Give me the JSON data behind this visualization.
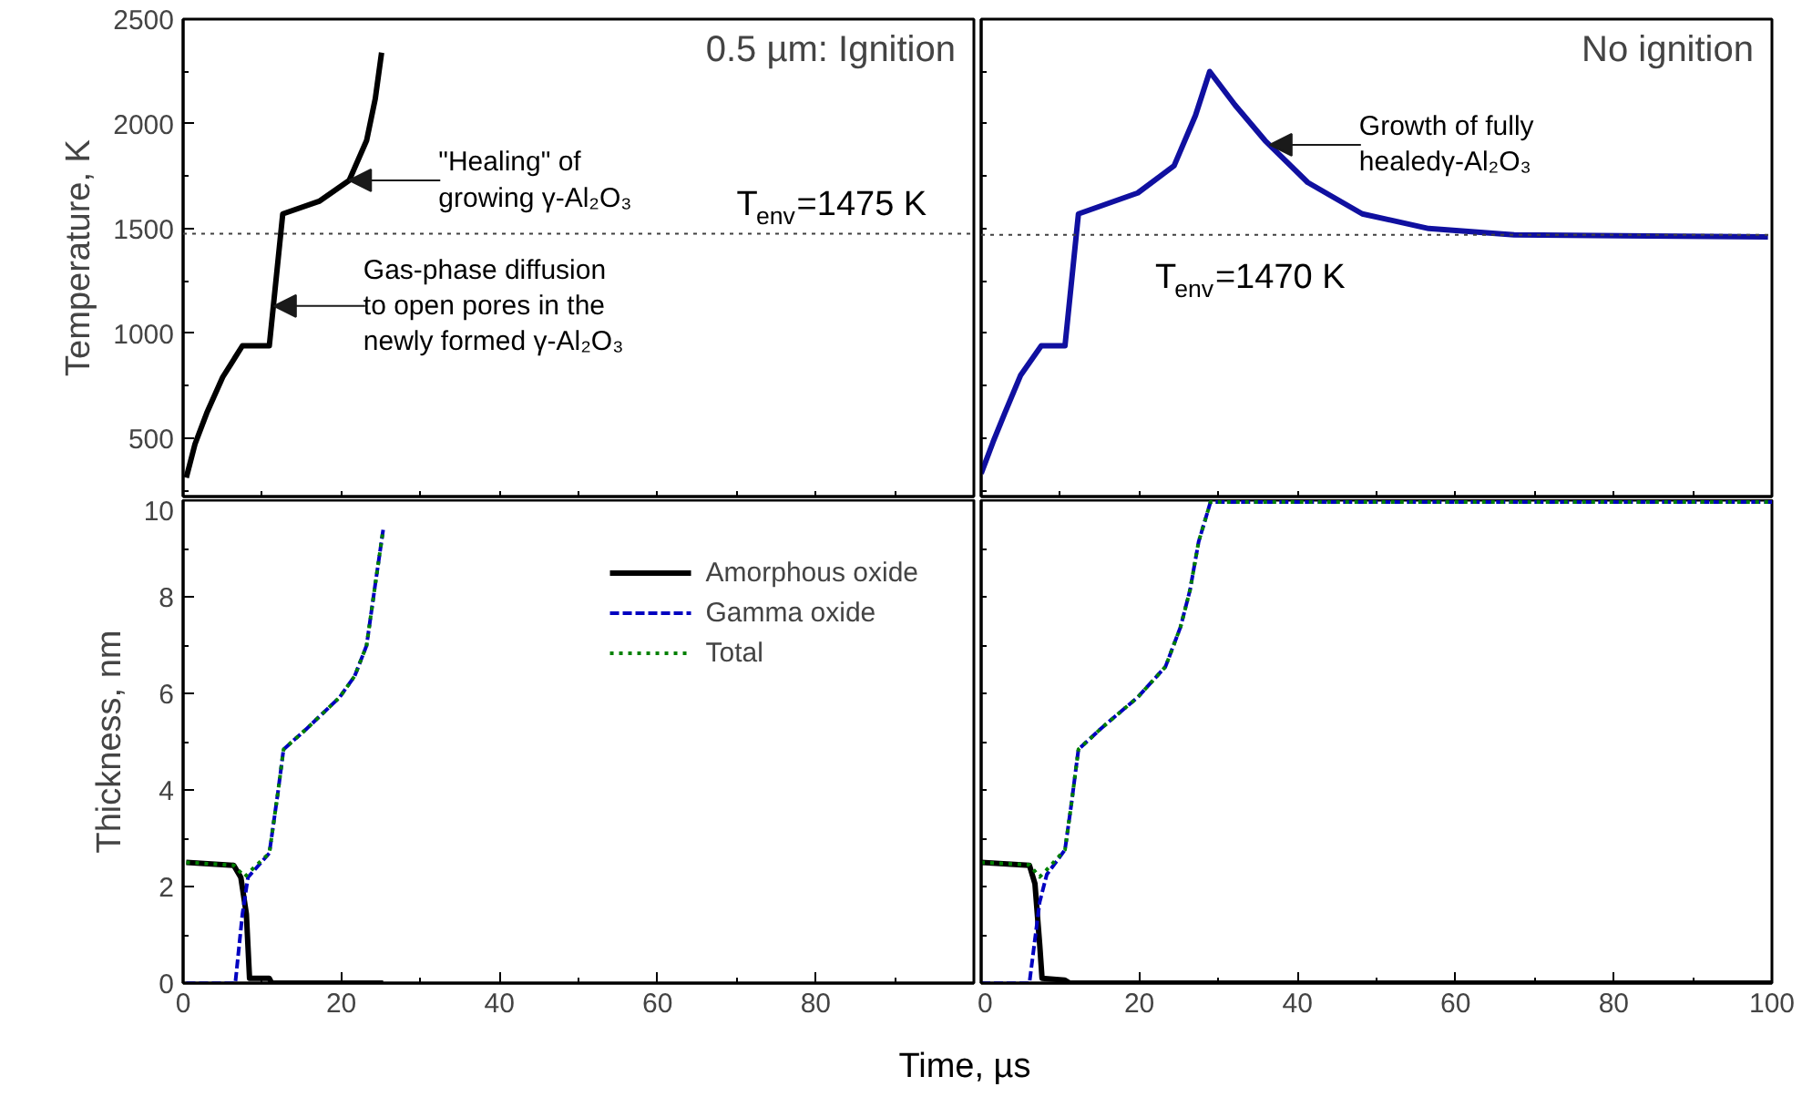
{
  "chart_data": [
    {
      "type": "line",
      "title": "0.5 µm: Ignition",
      "ylabel": "Temperature, K",
      "tick_labels": "y",
      "legend": false,
      "xlim": [
        0,
        100
      ],
      "xticks": [
        {
          "value": 0,
          "label": null
        },
        {
          "value": 10,
          "label": null
        },
        {
          "value": 20,
          "label": null
        },
        {
          "value": 30,
          "label": null
        },
        {
          "value": 40,
          "label": null
        },
        {
          "value": 50,
          "label": null
        },
        {
          "value": 60,
          "label": null
        },
        {
          "value": 70,
          "label": null
        },
        {
          "value": 80,
          "label": null
        },
        {
          "value": 90,
          "label": null
        },
        {
          "value": 100,
          "label": null
        }
      ],
      "ylim": [
        220,
        2500
      ],
      "yticks": [
        {
          "value": 250,
          "label": null
        },
        500,
        {
          "value": 750,
          "label": null
        },
        1000,
        {
          "value": 1250,
          "label": null
        },
        1500,
        {
          "value": 1750,
          "label": null
        },
        2000,
        {
          "value": 2250,
          "label": null
        },
        2500
      ],
      "series": [
        {
          "color": "#000000",
          "line_style": "solid",
          "x": [
            0.4,
            1.5,
            3,
            5,
            7.5,
            10.9,
            12.6,
            17.2,
            21,
            23.2,
            24.3,
            25.1
          ],
          "values": [
            310,
            470,
            620,
            790,
            940,
            940,
            1570,
            1630,
            1730,
            1920,
            2120,
            2340
          ]
        }
      ],
      "ref_lines": [
        {
          "axis": "y",
          "value": 1475,
          "label": "T$_{env}$=1475 K",
          "color": "#404040",
          "line_style": "dotted"
        }
      ],
      "annotations": [
        {
          "text": "\"Healing\" of\ngrowing γ-Al₂O₃",
          "x": 21,
          "y": 1730
        },
        {
          "text": "Gas-phase diffusion\nto open pores in the\nnewly formed γ-Al₂O₃",
          "x": 11.5,
          "y": 1130
        }
      ]
    },
    {
      "type": "line",
      "title": "No ignition",
      "tick_labels": false,
      "legend": false,
      "xlim": [
        0,
        100
      ],
      "xticks": [
        {
          "value": 0,
          "label": null
        },
        {
          "value": 10,
          "label": null
        },
        {
          "value": 20,
          "label": null
        },
        {
          "value": 30,
          "label": null
        },
        {
          "value": 40,
          "label": null
        },
        {
          "value": 50,
          "label": null
        },
        {
          "value": 60,
          "label": null
        },
        {
          "value": 70,
          "label": null
        },
        {
          "value": 80,
          "label": null
        },
        {
          "value": 90,
          "label": null
        },
        {
          "value": 100,
          "label": null
        }
      ],
      "ylim": [
        220,
        2500
      ],
      "yticks": [
        {
          "value": 250,
          "label": null
        },
        {
          "value": 500,
          "label": null
        },
        {
          "value": 750,
          "label": null
        },
        {
          "value": 1000,
          "label": null
        },
        {
          "value": 1250,
          "label": null
        },
        {
          "value": 1500,
          "label": null
        },
        {
          "value": 1750,
          "label": null
        },
        {
          "value": 2000,
          "label": null
        },
        {
          "value": 2250,
          "label": null
        },
        {
          "value": 2500,
          "label": null
        }
      ],
      "series": [
        {
          "color": "#1010a0",
          "line_style": "solid",
          "x": [
            0,
            1.5,
            3,
            5,
            7.6,
            10.6,
            12.3,
            19.8,
            24.4,
            27.1,
            28.9,
            32.1,
            35.9,
            41.3,
            48.2,
            56.6,
            67.4,
            99.5
          ],
          "values": [
            330,
            480,
            620,
            800,
            940,
            940,
            1570,
            1670,
            1800,
            2040,
            2250,
            2090,
            1920,
            1720,
            1570,
            1500,
            1470,
            1460
          ]
        }
      ],
      "ref_lines": [
        {
          "axis": "y",
          "value": 1470,
          "label": "T$_{env}$=1470 K",
          "color": "#404040",
          "line_style": "dotted"
        }
      ],
      "annotations": [
        {
          "text": "Growth of fully\nhealedγ-Al₂O₃",
          "x": 36.5,
          "y": 1900
        }
      ]
    },
    {
      "type": "line",
      "ylabel": "Thickness, nm",
      "xlabel": "Time, µs",
      "legend": "top right",
      "xlim": [
        0,
        100
      ],
      "xticks": [
        0,
        {
          "value": 10,
          "label": null
        },
        20,
        {
          "value": 30,
          "label": null
        },
        40,
        {
          "value": 50,
          "label": null
        },
        60,
        {
          "value": 70,
          "label": null
        },
        80,
        {
          "value": 90,
          "label": null
        },
        {
          "value": 100,
          "label": null
        }
      ],
      "ylim": [
        0,
        10
      ],
      "yticks": [
        0,
        {
          "value": 1,
          "label": null
        },
        2,
        {
          "value": 3,
          "label": null
        },
        4,
        {
          "value": 5,
          "label": null
        },
        6,
        {
          "value": 7,
          "label": null
        },
        8,
        {
          "value": 9,
          "label": null
        },
        10
      ],
      "series": [
        {
          "name": "Amorphous oxide",
          "color": "#000000",
          "line_style": "solid",
          "x": [
            0.4,
            6.4,
            7.3,
            8.0,
            8.4,
            10.9,
            11.2,
            25.3
          ],
          "values": [
            2.5,
            2.44,
            2.19,
            1.43,
            0.1,
            0.1,
            0,
            0
          ]
        },
        {
          "name": "Gamma oxide",
          "color": "#0000c0",
          "line_style": "dashed",
          "x": [
            0.4,
            6.6,
            7.5,
            8.2,
            10.9,
            12,
            12.7,
            15.7,
            19.8,
            21.7,
            23.2,
            24.3,
            25.3
          ],
          "values": [
            0,
            0,
            1.43,
            2.19,
            2.69,
            3.96,
            4.84,
            5.28,
            5.92,
            6.36,
            6.99,
            8.26,
            9.39
          ]
        },
        {
          "name": "Total",
          "color": "#008000",
          "line_style": "dotted",
          "x": [
            0.4,
            6.4,
            7.8,
            9,
            10.9,
            12,
            12.7,
            15.7,
            19.8,
            21.7,
            23.2,
            24.3,
            25.3
          ],
          "values": [
            2.5,
            2.44,
            2.2,
            2.4,
            2.69,
            3.96,
            4.84,
            5.28,
            5.92,
            6.36,
            6.99,
            8.26,
            9.39
          ]
        }
      ]
    },
    {
      "type": "line",
      "tick_labels": "x",
      "legend": false,
      "xlim": [
        0,
        100
      ],
      "xticks": [
        0,
        {
          "value": 10,
          "label": null
        },
        20,
        {
          "value": 30,
          "label": null
        },
        40,
        {
          "value": 50,
          "label": null
        },
        60,
        {
          "value": 70,
          "label": null
        },
        80,
        {
          "value": 90,
          "label": null
        },
        100
      ],
      "ylim": [
        0,
        10
      ],
      "yticks": [
        {
          "value": 0,
          "label": null
        },
        {
          "value": 1,
          "label": null
        },
        {
          "value": 2,
          "label": null
        },
        {
          "value": 3,
          "label": null
        },
        {
          "value": 4,
          "label": null
        },
        {
          "value": 5,
          "label": null
        },
        {
          "value": 6,
          "label": null
        },
        {
          "value": 7,
          "label": null
        },
        {
          "value": 8,
          "label": null
        },
        {
          "value": 9,
          "label": null
        },
        {
          "value": 10,
          "label": null
        }
      ],
      "series": [
        {
          "color": "#000000",
          "line_style": "solid",
          "x": [
            0,
            6.1,
            6.8,
            7.4,
            7.7,
            10.6,
            11.2,
            100
          ],
          "values": [
            2.5,
            2.44,
            2.06,
            0.8,
            0.1,
            0.06,
            0,
            0
          ]
        },
        {
          "color": "#0000c0",
          "line_style": "dashed",
          "x": [
            0,
            6.1,
            7.4,
            8.3,
            10.6,
            11.4,
            12.3,
            15.2,
            19.8,
            23.3,
            25.2,
            26.4,
            27.5,
            29,
            100
          ],
          "values": [
            0,
            0,
            1.68,
            2.25,
            2.76,
            3.7,
            4.84,
            5.28,
            5.92,
            6.55,
            7.37,
            8.13,
            9.14,
            9.96,
            9.96
          ]
        },
        {
          "color": "#008000",
          "line_style": "dotted",
          "x": [
            0,
            6.1,
            7.4,
            8.3,
            10.6,
            11.4,
            12.3,
            15.2,
            19.8,
            23.3,
            25.2,
            26.4,
            27.5,
            29,
            100
          ],
          "values": [
            2.5,
            2.45,
            2.2,
            2.35,
            2.76,
            3.7,
            4.84,
            5.28,
            5.92,
            6.55,
            7.37,
            8.13,
            9.14,
            9.96,
            9.96
          ]
        }
      ]
    }
  ]
}
